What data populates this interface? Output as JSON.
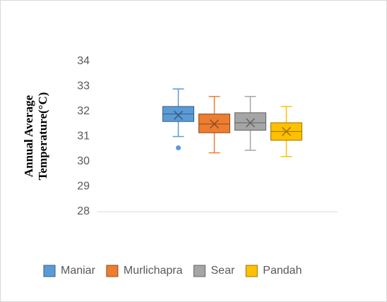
{
  "chart_data": {
    "type": "box",
    "ylabel": [
      "Annual Average",
      "Temperature(°C)"
    ],
    "ylim": [
      28,
      34
    ],
    "yticks": [
      28,
      29,
      30,
      31,
      32,
      33,
      34
    ],
    "grid": false,
    "legend": "bottom",
    "series": [
      {
        "name": "Maniar",
        "color": "#5b9bd5",
        "values": {
          "min": 31.0,
          "q1": 31.6,
          "median": 31.9,
          "q3": 32.2,
          "max": 32.9,
          "mean": 31.85,
          "outliers": [
            30.55
          ]
        }
      },
      {
        "name": "Murlichapra",
        "color": "#ed7d31",
        "values": {
          "min": 30.35,
          "q1": 31.15,
          "median": 31.5,
          "q3": 31.9,
          "max": 32.6,
          "mean": 31.5,
          "outliers": []
        }
      },
      {
        "name": "Sear",
        "color": "#a5a5a5",
        "values": {
          "min": 30.45,
          "q1": 31.25,
          "median": 31.55,
          "q3": 31.95,
          "max": 32.6,
          "mean": 31.55,
          "outliers": []
        }
      },
      {
        "name": "Pandah",
        "color": "#ffc000",
        "values": {
          "min": 30.2,
          "q1": 30.85,
          "median": 31.2,
          "q3": 31.55,
          "max": 32.2,
          "mean": 31.2,
          "outliers": []
        }
      }
    ]
  }
}
